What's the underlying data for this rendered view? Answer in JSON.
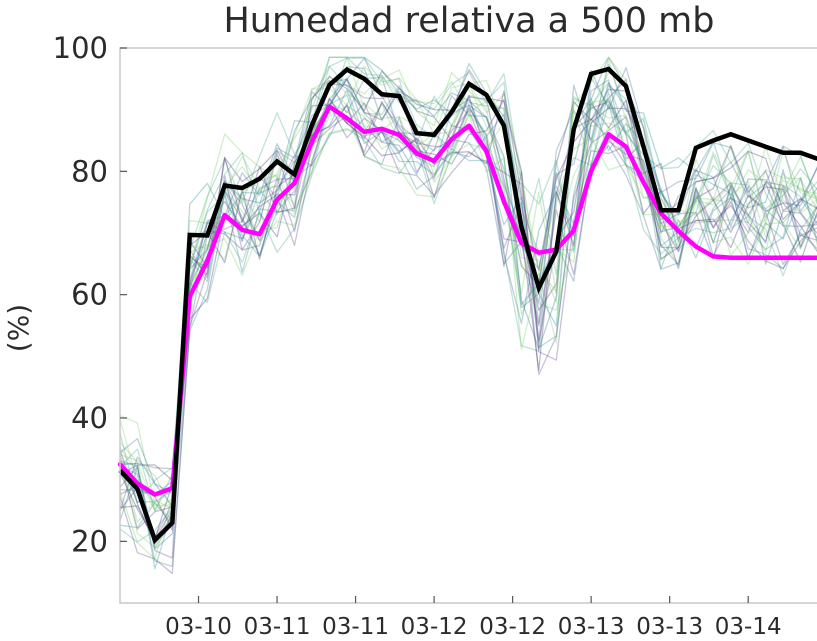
{
  "chart_data": {
    "type": "line",
    "title": "Humedad relativa a 500 mb",
    "xlabel": "",
    "ylabel": "(%)",
    "ylim": [
      10,
      100
    ],
    "yticks": [
      20,
      40,
      60,
      80,
      100
    ],
    "x_count": 41,
    "xtick_positions": [
      4.5,
      9,
      13.5,
      18,
      22.5,
      27,
      31.5,
      36
    ],
    "xtick_labels": [
      "03-10",
      "03-11",
      "03-11",
      "03-12",
      "03-12",
      "03-13",
      "03-13",
      "03-14"
    ],
    "grid": false,
    "series": [
      {
        "role": "control",
        "color": "#000000",
        "values": [
          31.5,
          28.5,
          20.2,
          23,
          69.7,
          69.6,
          77.7,
          77.3,
          78.8,
          81.6,
          79.5,
          87.5,
          94,
          96.5,
          95,
          92.5,
          92.2,
          86.2,
          85.9,
          89.6,
          94.2,
          92.4,
          87.4,
          71,
          61.1,
          67,
          86.8,
          95.8,
          96.6,
          93.8,
          84,
          73.7,
          73.7,
          83.8,
          85,
          86,
          85,
          84,
          83,
          83,
          82
        ]
      },
      {
        "role": "mean",
        "color": "#ff00ff",
        "values": [
          32.5,
          29.4,
          27.6,
          28.6,
          59.7,
          65.5,
          72.9,
          70.5,
          69.8,
          75.4,
          78.1,
          84.8,
          90.5,
          88.6,
          86.4,
          86.9,
          85.9,
          82.9,
          81.7,
          85.2,
          87.4,
          83.3,
          75.1,
          68.4,
          66.8,
          67.3,
          70.4,
          80,
          86,
          84,
          78.2,
          73.2,
          70.3,
          67.8,
          66.2,
          66,
          66,
          66,
          66,
          66,
          66
        ]
      }
    ],
    "ensemble_colors": [
      "#3b2d6e",
      "#2f6b8e",
      "#3fa58a",
      "#7cc86b",
      "#5a3e85",
      "#24868e",
      "#6cce59"
    ],
    "ensemble_count": 30
  }
}
